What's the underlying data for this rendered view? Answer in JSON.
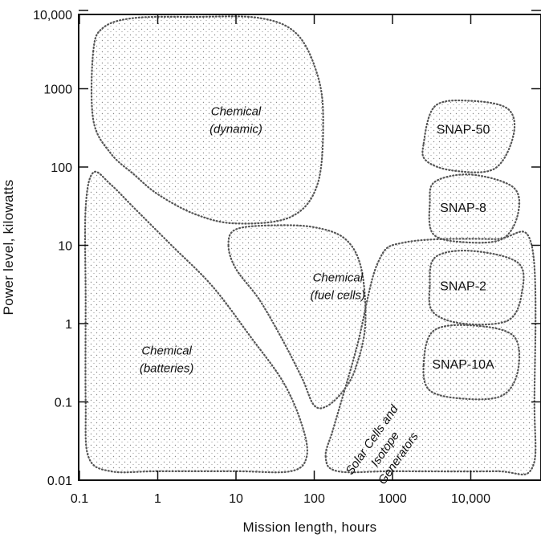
{
  "chart_data": {
    "type": "area",
    "title": "",
    "xlabel": "Mission length, hours",
    "ylabel": "Power level, kilowatts",
    "x_scale": "log",
    "y_scale": "log",
    "xlim": [
      0.1,
      70000
    ],
    "ylim": [
      0.01,
      10000
    ],
    "x_ticks": [
      {
        "value": 0.1,
        "label": "0.1"
      },
      {
        "value": 1,
        "label": "1"
      },
      {
        "value": 10,
        "label": "10"
      },
      {
        "value": 100,
        "label": "100"
      },
      {
        "value": 1000,
        "label": "1000"
      },
      {
        "value": 10000,
        "label": "10,000"
      }
    ],
    "y_ticks": [
      {
        "value": 0.01,
        "label": "0.01"
      },
      {
        "value": 0.1,
        "label": "0.1"
      },
      {
        "value": 1,
        "label": "1"
      },
      {
        "value": 10,
        "label": "10"
      },
      {
        "value": 100,
        "label": "100"
      },
      {
        "value": 1000,
        "label": "1000"
      },
      {
        "value": 10000,
        "label": "10,000"
      }
    ],
    "grid": false,
    "regions": [
      {
        "id": "chemical-dynamic",
        "label_lines": [
          "Chemical",
          "(dynamic)"
        ],
        "label_style": "italic",
        "label_at": {
          "x": 10,
          "y": 400
        },
        "boundary": [
          {
            "x": 0.15,
            "y": 3000
          },
          {
            "x": 0.2,
            "y": 6000
          },
          {
            "x": 0.5,
            "y": 8000
          },
          {
            "x": 3,
            "y": 8500
          },
          {
            "x": 20,
            "y": 8000
          },
          {
            "x": 60,
            "y": 5000
          },
          {
            "x": 110,
            "y": 1500
          },
          {
            "x": 130,
            "y": 400
          },
          {
            "x": 110,
            "y": 60
          },
          {
            "x": 50,
            "y": 23
          },
          {
            "x": 10,
            "y": 19
          },
          {
            "x": 3,
            "y": 25
          },
          {
            "x": 1,
            "y": 45
          },
          {
            "x": 0.5,
            "y": 80
          },
          {
            "x": 0.25,
            "y": 150
          },
          {
            "x": 0.15,
            "y": 400
          }
        ]
      },
      {
        "id": "chemical-batteries",
        "label_lines": [
          "Chemical",
          "(batteries)"
        ],
        "label_style": "italic",
        "label_at": {
          "x": 1.3,
          "y": 0.35
        },
        "boundary": [
          {
            "x": 0.12,
            "y": 30
          },
          {
            "x": 0.15,
            "y": 85
          },
          {
            "x": 0.25,
            "y": 60
          },
          {
            "x": 0.5,
            "y": 30
          },
          {
            "x": 1.5,
            "y": 10
          },
          {
            "x": 5,
            "y": 3
          },
          {
            "x": 15,
            "y": 0.7
          },
          {
            "x": 40,
            "y": 0.18
          },
          {
            "x": 70,
            "y": 0.05
          },
          {
            "x": 80,
            "y": 0.02
          },
          {
            "x": 50,
            "y": 0.013
          },
          {
            "x": 10,
            "y": 0.013
          },
          {
            "x": 1,
            "y": 0.013
          },
          {
            "x": 0.25,
            "y": 0.013
          },
          {
            "x": 0.13,
            "y": 0.02
          },
          {
            "x": 0.12,
            "y": 0.1
          },
          {
            "x": 0.12,
            "y": 2
          }
        ]
      },
      {
        "id": "chemical-fuel-cells",
        "label_lines": [
          "Chemical",
          "(fuel cells)"
        ],
        "label_style": "italic",
        "label_at": {
          "x": 200,
          "y": 3
        },
        "boundary": [
          {
            "x": 8,
            "y": 10
          },
          {
            "x": 10,
            "y": 16
          },
          {
            "x": 30,
            "y": 18
          },
          {
            "x": 100,
            "y": 17
          },
          {
            "x": 250,
            "y": 12
          },
          {
            "x": 400,
            "y": 5
          },
          {
            "x": 450,
            "y": 1
          },
          {
            "x": 350,
            "y": 0.3
          },
          {
            "x": 250,
            "y": 0.15
          },
          {
            "x": 150,
            "y": 0.09
          },
          {
            "x": 100,
            "y": 0.09
          },
          {
            "x": 70,
            "y": 0.2
          },
          {
            "x": 40,
            "y": 0.6
          },
          {
            "x": 20,
            "y": 2
          },
          {
            "x": 10,
            "y": 5
          }
        ]
      },
      {
        "id": "solar-cells-isotope-generators",
        "label_lines": [
          "Solar Cells and",
          "Isotope",
          "Generators"
        ],
        "label_style": "normal",
        "label_rotation_deg": -55,
        "label_at": {
          "x": 800,
          "y": 0.025
        },
        "boundary": [
          {
            "x": 140,
            "y": 0.02
          },
          {
            "x": 180,
            "y": 0.05
          },
          {
            "x": 350,
            "y": 0.5
          },
          {
            "x": 650,
            "y": 6
          },
          {
            "x": 1500,
            "y": 11
          },
          {
            "x": 20000,
            "y": 12
          },
          {
            "x": 60000,
            "y": 10
          },
          {
            "x": 65000,
            "y": 0.1
          },
          {
            "x": 60000,
            "y": 0.014
          },
          {
            "x": 20000,
            "y": 0.013
          },
          {
            "x": 1000,
            "y": 0.013
          },
          {
            "x": 200,
            "y": 0.013
          }
        ]
      },
      {
        "id": "snap-50",
        "label_lines": [
          "SNAP-50"
        ],
        "label_style": "normal",
        "label_at": {
          "x": 8000,
          "y": 300
        },
        "boundary": [
          {
            "x": 2500,
            "y": 200
          },
          {
            "x": 3500,
            "y": 600
          },
          {
            "x": 10000,
            "y": 700
          },
          {
            "x": 30000,
            "y": 550
          },
          {
            "x": 35000,
            "y": 250
          },
          {
            "x": 20000,
            "y": 95
          },
          {
            "x": 6000,
            "y": 90
          },
          {
            "x": 2700,
            "y": 120
          }
        ]
      },
      {
        "id": "snap-8",
        "label_lines": [
          "SNAP-8"
        ],
        "label_style": "normal",
        "label_at": {
          "x": 8000,
          "y": 30
        },
        "boundary": [
          {
            "x": 3000,
            "y": 35
          },
          {
            "x": 3500,
            "y": 65
          },
          {
            "x": 10000,
            "y": 80
          },
          {
            "x": 35000,
            "y": 55
          },
          {
            "x": 40000,
            "y": 25
          },
          {
            "x": 25000,
            "y": 12
          },
          {
            "x": 8000,
            "y": 11
          },
          {
            "x": 3300,
            "y": 14
          }
        ]
      },
      {
        "id": "snap-2",
        "label_lines": [
          "SNAP-2"
        ],
        "label_style": "normal",
        "label_at": {
          "x": 8000,
          "y": 3
        },
        "boundary": [
          {
            "x": 3000,
            "y": 3
          },
          {
            "x": 3500,
            "y": 7
          },
          {
            "x": 10000,
            "y": 8.5
          },
          {
            "x": 40000,
            "y": 6
          },
          {
            "x": 45000,
            "y": 2.5
          },
          {
            "x": 30000,
            "y": 1.1
          },
          {
            "x": 8000,
            "y": 1.0
          },
          {
            "x": 3300,
            "y": 1.4
          }
        ]
      },
      {
        "id": "snap-10a",
        "label_lines": [
          "SNAP-10A"
        ],
        "label_style": "normal",
        "label_at": {
          "x": 8000,
          "y": 0.3
        },
        "boundary": [
          {
            "x": 2500,
            "y": 0.3
          },
          {
            "x": 3300,
            "y": 0.8
          },
          {
            "x": 10000,
            "y": 0.95
          },
          {
            "x": 35000,
            "y": 0.7
          },
          {
            "x": 40000,
            "y": 0.25
          },
          {
            "x": 25000,
            "y": 0.12
          },
          {
            "x": 8000,
            "y": 0.11
          },
          {
            "x": 3000,
            "y": 0.14
          }
        ]
      }
    ]
  }
}
